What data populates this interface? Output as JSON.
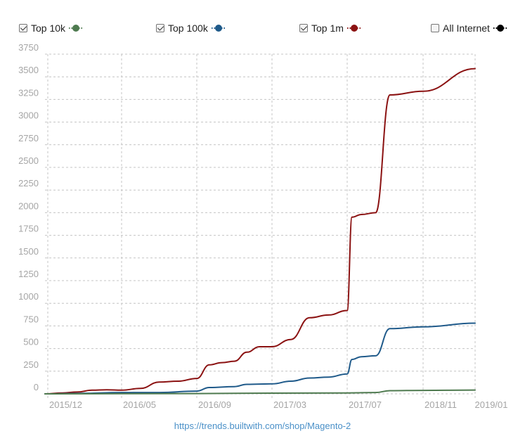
{
  "legend": [
    {
      "label": "Top 10k",
      "checked": true,
      "color": "#4e7a4f"
    },
    {
      "label": "Top 100k",
      "checked": true,
      "color": "#1f5a8a"
    },
    {
      "label": "Top 1m",
      "checked": true,
      "color": "#8b1212"
    },
    {
      "label": "All Internet",
      "checked": false,
      "color": "#000000"
    }
  ],
  "chart_data": {
    "type": "line",
    "x_ticks": [
      "2015/12",
      "2016/05",
      "2016/09",
      "2017/03",
      "2017/07",
      "2018/11",
      "2019/01"
    ],
    "y_ticks": [
      0,
      250,
      500,
      750,
      1000,
      1250,
      1500,
      1750,
      2000,
      2250,
      2500,
      2750,
      3000,
      3250,
      3500,
      3750
    ],
    "ylim": [
      0,
      3750
    ],
    "grid": true,
    "legend_position": "top",
    "series": [
      {
        "name": "Top 1m",
        "color": "#8b1212",
        "points": [
          [
            "2015/12",
            0
          ],
          [
            "2016/01",
            10
          ],
          [
            "2016/02",
            20
          ],
          [
            "2016/03",
            40
          ],
          [
            "2016/04",
            45
          ],
          [
            "2016/05",
            40
          ],
          [
            "2016/06",
            60
          ],
          [
            "2016/07",
            130
          ],
          [
            "2016/08",
            140
          ],
          [
            "2016/09",
            170
          ],
          [
            "2016/10",
            320
          ],
          [
            "2016/11",
            345
          ],
          [
            "2016/12",
            360
          ],
          [
            "2017/01",
            460
          ],
          [
            "2017/02",
            520
          ],
          [
            "2017/03",
            520
          ],
          [
            "2017/04",
            600
          ],
          [
            "2017/05",
            840
          ],
          [
            "2017/06",
            870
          ],
          [
            "2017/07",
            920
          ],
          [
            "2017/08",
            1950
          ],
          [
            "2017/10",
            1980
          ],
          [
            "2018/01",
            2000
          ],
          [
            "2018/04",
            3300
          ],
          [
            "2018/11",
            3340
          ],
          [
            "2019/01",
            3590
          ]
        ]
      },
      {
        "name": "Top 100k",
        "color": "#1f5a8a",
        "points": [
          [
            "2015/12",
            0
          ],
          [
            "2016/02",
            5
          ],
          [
            "2016/05",
            15
          ],
          [
            "2016/07",
            15
          ],
          [
            "2016/09",
            30
          ],
          [
            "2016/10",
            70
          ],
          [
            "2016/12",
            80
          ],
          [
            "2017/01",
            105
          ],
          [
            "2017/03",
            110
          ],
          [
            "2017/04",
            140
          ],
          [
            "2017/05",
            175
          ],
          [
            "2017/06",
            185
          ],
          [
            "2017/07",
            220
          ],
          [
            "2017/08",
            380
          ],
          [
            "2017/10",
            410
          ],
          [
            "2018/01",
            420
          ],
          [
            "2018/04",
            720
          ],
          [
            "2018/11",
            740
          ],
          [
            "2019/01",
            780
          ]
        ]
      },
      {
        "name": "Top 10k",
        "color": "#4e7a4f",
        "points": [
          [
            "2015/12",
            0
          ],
          [
            "2016/09",
            3
          ],
          [
            "2017/03",
            8
          ],
          [
            "2017/07",
            10
          ],
          [
            "2018/01",
            15
          ],
          [
            "2018/04",
            35
          ],
          [
            "2018/11",
            38
          ],
          [
            "2019/01",
            42
          ]
        ]
      }
    ]
  },
  "footer": {
    "source_link": "https://trends.builtwith.com/shop/Magento-2"
  }
}
